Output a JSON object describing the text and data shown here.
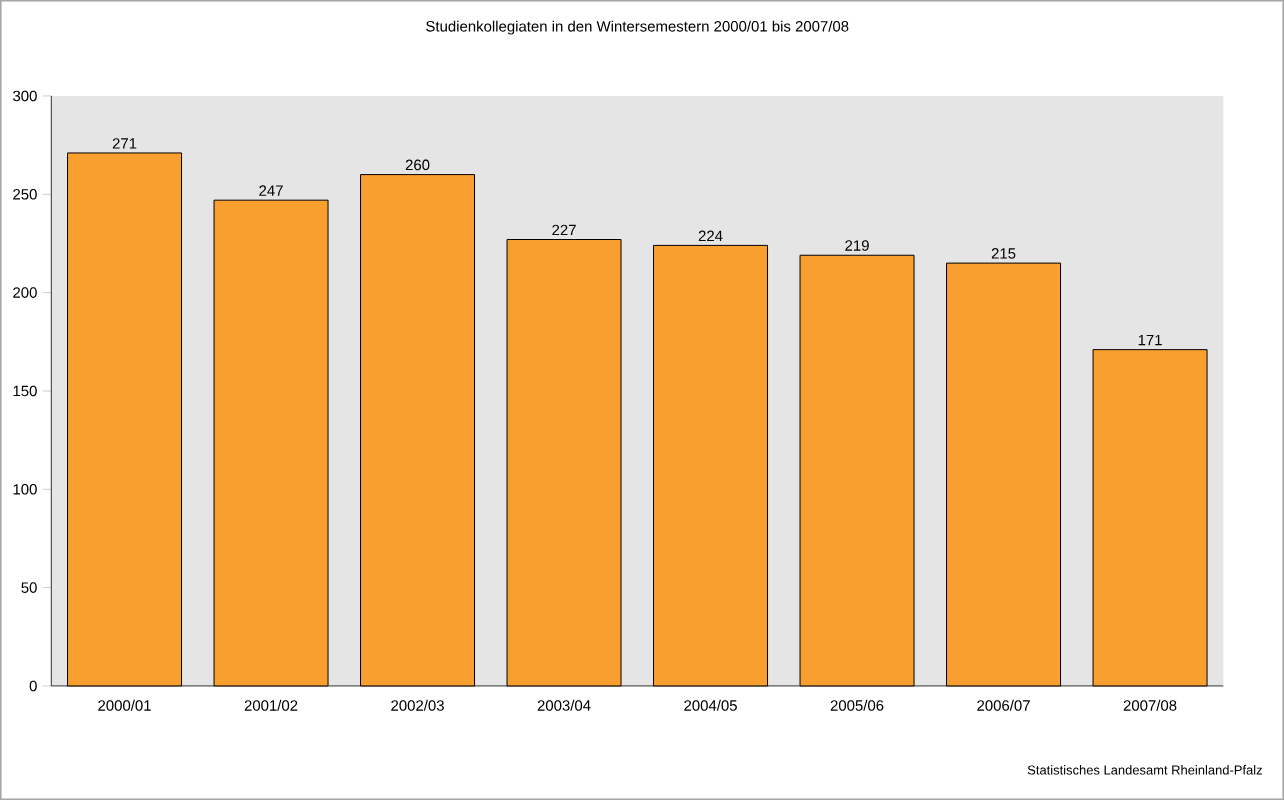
{
  "chart_data": {
    "type": "bar",
    "title": "Studienkollegiaten in den Wintersemestern 2000/01 bis 2007/08",
    "categories": [
      "2000/01",
      "2001/02",
      "2002/03",
      "2003/04",
      "2004/05",
      "2005/06",
      "2006/07",
      "2007/08"
    ],
    "values": [
      271,
      247,
      260,
      227,
      224,
      219,
      215,
      171
    ],
    "color": "#f99f2f",
    "ylim": [
      0,
      300
    ],
    "yticks": [
      0,
      50,
      100,
      150,
      200,
      250,
      300
    ],
    "data_labels": true,
    "annotations": [
      "Statistisches Landesamt Rheinland-Pfalz"
    ]
  }
}
